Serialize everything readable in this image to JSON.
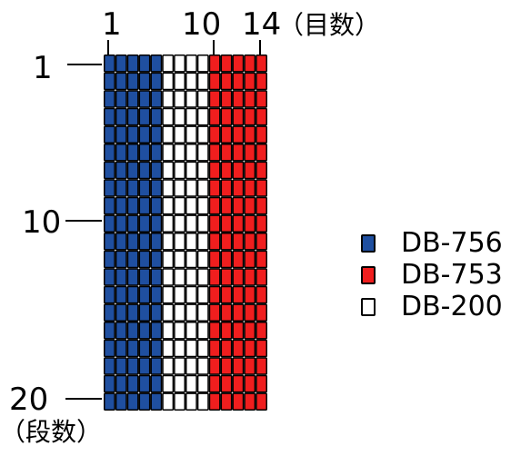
{
  "column_labels": [
    "1",
    "10",
    "14"
  ],
  "column_axis_label": "（目数）",
  "row_labels": [
    "1",
    "10",
    "20"
  ],
  "row_axis_label": "（段数）",
  "grid": {
    "columns": 14,
    "rows": 20,
    "column_yarns": [
      "DB-756",
      "DB-756",
      "DB-756",
      "DB-756",
      "DB-756",
      "DB-200",
      "DB-200",
      "DB-200",
      "DB-200",
      "DB-753",
      "DB-753",
      "DB-753",
      "DB-753",
      "DB-753"
    ]
  },
  "legend": [
    {
      "label": "DB-756",
      "color": "#1f4fa0"
    },
    {
      "label": "DB-753",
      "color": "#f01e1e"
    },
    {
      "label": "DB-200",
      "color": "#ffffff"
    }
  ]
}
